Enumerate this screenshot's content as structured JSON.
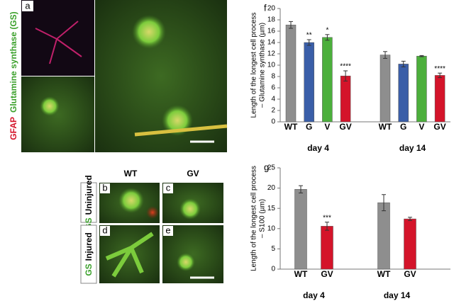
{
  "panels": {
    "a": {
      "letter": "a",
      "label_red": "GFAP",
      "label_green": "Glutamine synthase (GS)"
    },
    "b": "b",
    "c": "c",
    "d": "d",
    "e": "e",
    "columns": [
      "WT",
      "GV"
    ],
    "rows": [
      {
        "marker": "GS",
        "label": "Uninjured"
      },
      {
        "marker": "GS",
        "label": "Injured"
      }
    ]
  },
  "chart_data": [
    {
      "type": "bar",
      "letter": "f",
      "y_label": [
        "Length of the longest cell process",
        "– Glutamine synthase (µm)"
      ],
      "ylim": [
        0,
        20
      ],
      "yticks": [
        0,
        2,
        4,
        6,
        8,
        10,
        12,
        14,
        16,
        18,
        20
      ],
      "groups": [
        {
          "name": "day 4",
          "categories": [
            "WT",
            "G",
            "V",
            "GV"
          ],
          "values": [
            17.1,
            14.0,
            14.9,
            8.1
          ],
          "errors": [
            0.6,
            0.5,
            0.5,
            0.9
          ],
          "colors": [
            "#8e8e8e",
            "#3a5ea8",
            "#4caf3c",
            "#d4142a"
          ],
          "annotations": [
            null,
            "**",
            "*",
            "****"
          ]
        },
        {
          "name": "day 14",
          "categories": [
            "WT",
            "G",
            "V",
            "GV"
          ],
          "values": [
            11.8,
            10.2,
            11.6,
            8.2
          ],
          "errors": [
            0.6,
            0.5,
            0.1,
            0.4
          ],
          "colors": [
            "#8e8e8e",
            "#3a5ea8",
            "#4caf3c",
            "#d4142a"
          ],
          "annotations": [
            null,
            null,
            null,
            "****"
          ]
        }
      ]
    },
    {
      "type": "bar",
      "letter": "g",
      "y_label": [
        "Length of the longest cell process",
        "– S100 (µm)"
      ],
      "ylim": [
        0,
        25
      ],
      "yticks": [
        0,
        5,
        10,
        15,
        20,
        25
      ],
      "groups": [
        {
          "name": "day 4",
          "categories": [
            "WT",
            "GV"
          ],
          "values": [
            19.7,
            10.6
          ],
          "errors": [
            0.9,
            1.0
          ],
          "colors": [
            "#8e8e8e",
            "#d4142a"
          ],
          "annotations": [
            null,
            "***"
          ]
        },
        {
          "name": "day 14",
          "categories": [
            "WT",
            "GV"
          ],
          "values": [
            16.4,
            12.4
          ],
          "errors": [
            2.0,
            0.4
          ],
          "colors": [
            "#8e8e8e",
            "#d4142a"
          ],
          "annotations": [
            null,
            null
          ]
        }
      ]
    }
  ]
}
